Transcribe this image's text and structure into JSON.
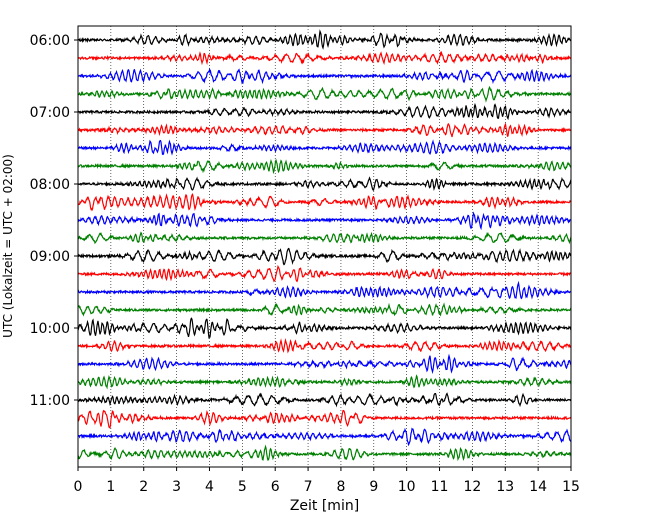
{
  "chart_data": {
    "type": "line",
    "subtype": "helicorder",
    "title": "",
    "xlabel": "Zeit  [min]",
    "ylabel": "UTC (Lokalzeit = UTC + 02:00)",
    "xlim": [
      0,
      15
    ],
    "x_ticks": [
      "0",
      "1",
      "2",
      "3",
      "4",
      "5",
      "6",
      "7",
      "8",
      "9",
      "10",
      "11",
      "12",
      "13",
      "14",
      "15"
    ],
    "y_tick_labels": [
      "06:00",
      "07:00",
      "08:00",
      "09:00",
      "10:00",
      "11:00"
    ],
    "trace_minutes": 15,
    "start_time": "06:00",
    "trace_count": 24,
    "color_cycle": [
      "#000000",
      "#ff0000",
      "#0000ff",
      "#008000"
    ],
    "grid": "vertical dotted lines at each minute",
    "legend": "none"
  }
}
